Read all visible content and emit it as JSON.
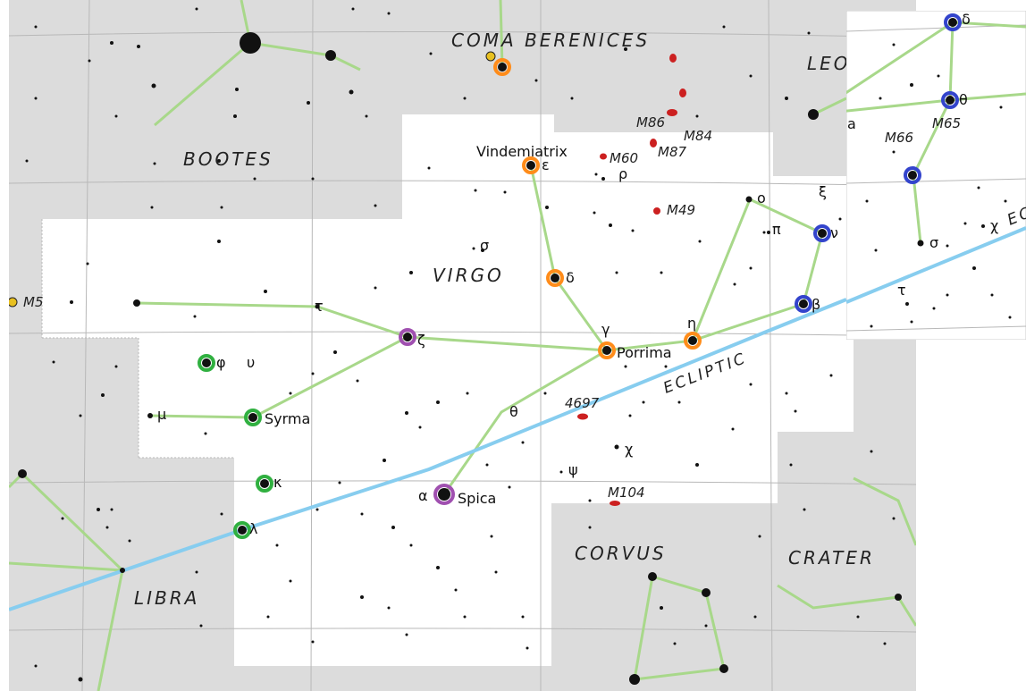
{
  "constellations": {
    "coma": "COMA BERENICES",
    "leo": "LEO",
    "bootes": "BOOTES",
    "virgo": "VIRGO",
    "libra": "LIBRA",
    "corvus": "CORVUS",
    "crater": "CRATER"
  },
  "ecliptic": "ECLIPTIC",
  "star_names": [
    "Vindemiatrix",
    "Porrima",
    "Syrma",
    "Spica"
  ],
  "greek": [
    "ε",
    "ρ",
    "σ",
    "δ",
    "γ",
    "η",
    "ο",
    "π",
    "ξ",
    "ν",
    "β",
    "τ",
    "ζ",
    "φ",
    "υ",
    "μ",
    "θ",
    "χ",
    "ψ",
    "α",
    "κ",
    "λ"
  ],
  "inset_greek": [
    "δ",
    "θ",
    "a",
    "σ",
    "χ",
    "τ"
  ],
  "deep_sky": [
    "M86",
    "M84",
    "M60",
    "M87",
    "M49",
    "M5",
    "4697",
    "M104",
    "M66",
    "M65"
  ]
}
